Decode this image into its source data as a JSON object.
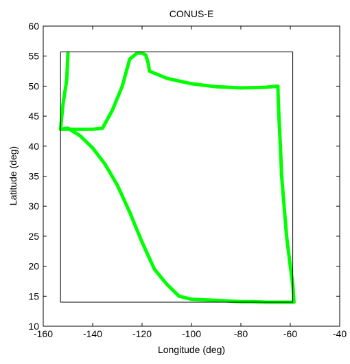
{
  "chart_data": {
    "type": "line",
    "title": "CONUS-E",
    "xlabel": "Longitude (deg)",
    "ylabel": "Latitude (deg)",
    "xlim": [
      -160,
      -40
    ],
    "ylim": [
      10,
      60
    ],
    "xticks": [
      -160,
      -140,
      -120,
      -100,
      -80,
      -60,
      -40
    ],
    "yticks": [
      10,
      15,
      20,
      25,
      30,
      35,
      40,
      45,
      50,
      55,
      60
    ],
    "grid": false,
    "legend": "none",
    "series": [
      {
        "color": "#00ff00",
        "style": "thick-solid",
        "x": [
          -153,
          -150,
          -145,
          -140,
          -135,
          -130,
          -125,
          -120,
          -115,
          -110,
          -105,
          -100,
          -95,
          -90,
          -85,
          -80,
          -75,
          -70,
          -65,
          -61,
          -58.5,
          -59,
          -60,
          -61.5,
          -62.5,
          -63.5,
          -64,
          -64.5,
          -64.8,
          -65,
          -65,
          -70,
          -80,
          -90,
          -100,
          -110,
          -117,
          -117.5,
          -118.5,
          -120,
          -122,
          -125,
          -128,
          -132,
          -136,
          -140,
          -144,
          -148,
          -151,
          -153,
          -153,
          -152,
          -150.5,
          -150
        ],
        "y": [
          42.8,
          43,
          41.7,
          39.7,
          37,
          33.5,
          29,
          24,
          19.5,
          17,
          15,
          14.5,
          14.4,
          14.3,
          14.2,
          14.1,
          14.1,
          14,
          14,
          14,
          14,
          17,
          20,
          25,
          30,
          35,
          40,
          44,
          47,
          49.5,
          50,
          49.8,
          49.7,
          49.9,
          50.4,
          51.3,
          52.5,
          53.8,
          55.2,
          55.5,
          55.5,
          54.5,
          50,
          46,
          43,
          42.8,
          42.8,
          42.8,
          42.8,
          42.8,
          42.8,
          47,
          51,
          55.5
        ]
      },
      {
        "color": "#000000",
        "style": "thin-solid",
        "x": [
          -153,
          -59,
          -59,
          -153,
          -153
        ],
        "y": [
          14,
          14,
          55.7,
          55.7,
          14
        ]
      }
    ]
  }
}
